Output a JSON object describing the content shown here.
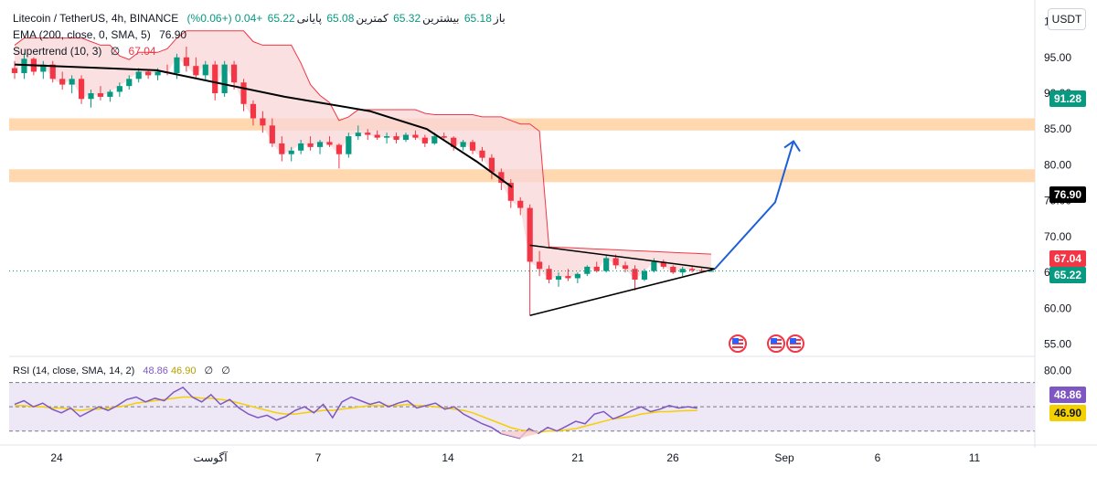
{
  "header": {
    "symbol": "Litecoin / TetherUS, 4h, BINANCE",
    "ohlc": {
      "open_label": "باز",
      "open": "65.18",
      "high_label": "بیشترین",
      "high": "65.32",
      "low_label": "کمترین",
      "low": "65.08",
      "close_label": "پایانی",
      "close": "65.22",
      "change": "+0.04 (+0.06%)"
    },
    "ema_label": "EMA (200, close, 0, SMA, 5)",
    "ema_value": "76.90",
    "supertrend_label": "Supertrend (10, 3)",
    "supertrend_symbol": "∅",
    "supertrend_value": "67.04",
    "rsi_label": "RSI (14, close, SMA, 14, 2)",
    "rsi_value": "48.86",
    "rsi_ma_value": "46.90",
    "rsi_empty_a": "∅",
    "rsi_empty_b": "∅",
    "currency": "USDT"
  },
  "price_badges": {
    "level_91": "91.28",
    "ema": "76.90",
    "supertrend": "67.04",
    "last": "65.22",
    "rsi": "48.86",
    "rsi_ma": "46.90"
  },
  "colors": {
    "up": "#089981",
    "down": "#f23645",
    "ema": "#000000",
    "supertrend_fill": "#f8d6d6",
    "zone": "#ffd8b0",
    "arrow": "#1e5fd8",
    "rsi_line": "#7e57c2",
    "rsi_ma": "#f5d000",
    "rsi_band": "#ede7f6"
  },
  "chart_data": {
    "type": "candlestick",
    "title": "Litecoin / TetherUS, 4h, BINANCE",
    "price_axis": {
      "ticks": [
        55,
        60,
        65,
        70,
        75,
        80,
        85,
        90,
        95,
        100
      ],
      "tick_labels": [
        "55.00",
        "60.00",
        "65.00",
        "70.00",
        "75.00",
        "80.00",
        "85.00",
        "90.00",
        "95.00",
        "100.00"
      ],
      "ylim": [
        53.3,
        103
      ]
    },
    "time_axis": {
      "tick_labels": [
        "24",
        "آگوست",
        "7",
        "14",
        "21",
        "26",
        "Sep",
        "6",
        "11"
      ]
    },
    "candles_ohlc": [
      [
        93.5,
        94.5,
        92.0,
        92.8
      ],
      [
        92.8,
        95.5,
        92.0,
        94.8
      ],
      [
        94.8,
        95.0,
        92.5,
        93.0
      ],
      [
        93.0,
        94.5,
        92.0,
        94.0
      ],
      [
        94.0,
        94.5,
        91.5,
        92.0
      ],
      [
        92.0,
        93.0,
        90.5,
        91.2
      ],
      [
        91.2,
        92.5,
        90.0,
        92.0
      ],
      [
        92.0,
        92.5,
        88.5,
        89.2
      ],
      [
        89.2,
        90.5,
        88.0,
        90.0
      ],
      [
        90.0,
        91.0,
        89.0,
        89.5
      ],
      [
        89.5,
        90.5,
        88.8,
        90.2
      ],
      [
        90.2,
        91.5,
        89.5,
        91.0
      ],
      [
        91.0,
        92.5,
        90.5,
        92.0
      ],
      [
        92.0,
        93.5,
        91.5,
        93.0
      ],
      [
        93.0,
        93.2,
        92.0,
        92.5
      ],
      [
        92.5,
        93.5,
        91.8,
        93.0
      ],
      [
        93.0,
        94.0,
        92.5,
        92.8
      ],
      [
        92.8,
        95.5,
        92.0,
        95.0
      ],
      [
        95.0,
        96.5,
        93.0,
        93.8
      ],
      [
        93.8,
        95.0,
        92.0,
        92.5
      ],
      [
        92.5,
        94.5,
        91.8,
        94.0
      ],
      [
        94.0,
        94.5,
        89.0,
        90.0
      ],
      [
        90.0,
        94.5,
        89.5,
        94.0
      ],
      [
        94.0,
        94.5,
        90.5,
        91.5
      ],
      [
        91.5,
        92.0,
        87.5,
        88.5
      ],
      [
        88.5,
        89.0,
        85.5,
        86.5
      ],
      [
        86.5,
        87.5,
        84.5,
        85.5
      ],
      [
        85.5,
        86.5,
        82.5,
        83.0
      ],
      [
        83.0,
        84.0,
        80.5,
        81.5
      ],
      [
        81.5,
        82.5,
        80.5,
        82.0
      ],
      [
        82.0,
        83.5,
        81.5,
        83.0
      ],
      [
        83.0,
        84.0,
        82.0,
        82.5
      ],
      [
        82.5,
        83.5,
        81.5,
        83.2
      ],
      [
        83.2,
        84.0,
        82.5,
        82.8
      ],
      [
        82.8,
        83.0,
        79.5,
        81.5
      ],
      [
        81.5,
        84.5,
        81.0,
        84.0
      ],
      [
        84.0,
        85.5,
        83.5,
        84.5
      ],
      [
        84.5,
        85.0,
        83.5,
        84.2
      ],
      [
        84.2,
        84.8,
        83.5,
        83.8
      ],
      [
        83.8,
        84.5,
        83.0,
        84.0
      ],
      [
        84.0,
        84.5,
        83.0,
        83.5
      ],
      [
        83.5,
        84.5,
        83.2,
        84.2
      ],
      [
        84.2,
        84.8,
        83.5,
        83.8
      ],
      [
        83.8,
        84.2,
        82.5,
        83.0
      ],
      [
        83.0,
        84.5,
        82.8,
        84.0
      ],
      [
        84.0,
        84.5,
        83.5,
        83.8
      ],
      [
        83.8,
        84.0,
        82.0,
        82.5
      ],
      [
        82.5,
        83.5,
        82.0,
        83.2
      ],
      [
        83.2,
        83.5,
        81.5,
        82.0
      ],
      [
        82.0,
        82.5,
        80.5,
        81.0
      ],
      [
        81.0,
        81.5,
        78.0,
        79.0
      ],
      [
        79.0,
        79.5,
        76.5,
        77.5
      ],
      [
        77.5,
        78.0,
        74.0,
        75.0
      ],
      [
        75.0,
        75.5,
        73.0,
        74.0
      ],
      [
        74.0,
        74.5,
        59.0,
        66.5
      ],
      [
        66.5,
        68.0,
        64.5,
        65.5
      ],
      [
        65.5,
        66.0,
        63.5,
        64.0
      ],
      [
        64.0,
        65.0,
        63.0,
        64.5
      ],
      [
        64.5,
        65.5,
        63.8,
        64.2
      ],
      [
        64.2,
        65.0,
        63.5,
        64.8
      ],
      [
        64.8,
        66.0,
        64.5,
        65.8
      ],
      [
        65.8,
        66.5,
        65.0,
        65.2
      ],
      [
        65.2,
        67.5,
        65.0,
        67.0
      ],
      [
        67.0,
        67.5,
        65.5,
        66.0
      ],
      [
        66.0,
        66.5,
        65.0,
        65.5
      ],
      [
        65.5,
        66.0,
        62.5,
        64.0
      ],
      [
        64.0,
        65.5,
        63.8,
        65.2
      ],
      [
        65.2,
        67.0,
        65.0,
        66.5
      ],
      [
        66.5,
        66.8,
        65.5,
        65.8
      ],
      [
        65.8,
        66.0,
        64.8,
        65.0
      ],
      [
        65.0,
        65.8,
        64.5,
        65.5
      ],
      [
        65.5,
        66.0,
        65.0,
        65.3
      ],
      [
        65.3,
        65.6,
        65.0,
        65.18
      ],
      [
        65.18,
        65.32,
        65.08,
        65.22
      ]
    ],
    "ema200": {
      "name": "EMA (200, close, 0, SMA, 5)",
      "x_frac": [
        0.0,
        0.2,
        0.38,
        0.5,
        0.58,
        0.65,
        0.7
      ],
      "values": [
        94.0,
        93.2,
        89.5,
        87.5,
        85.0,
        80.5,
        76.9
      ]
    },
    "supertrend": {
      "name": "Supertrend (10, 3)",
      "value": 67.04
    },
    "resistance_zones": [
      [
        84.8,
        86.5
      ],
      [
        77.6,
        79.4
      ]
    ],
    "triangle": {
      "top": [
        68.8,
        65.5
      ],
      "bottom": [
        59.0,
        65.5
      ]
    },
    "projection_arrow": [
      65.5,
      74.8,
      83.3
    ],
    "rsi": {
      "ylim": [
        20,
        90
      ],
      "levels": [
        30,
        50,
        70
      ],
      "tick_labels": [
        "80.00"
      ],
      "values": [
        52,
        55,
        50,
        53,
        48,
        45,
        49,
        42,
        46,
        50,
        47,
        51,
        56,
        58,
        54,
        57,
        55,
        62,
        66,
        58,
        54,
        60,
        52,
        56,
        49,
        44,
        41,
        43,
        39,
        42,
        47,
        50,
        45,
        52,
        41,
        54,
        58,
        55,
        52,
        54,
        50,
        53,
        55,
        49,
        51,
        53,
        48,
        50,
        44,
        40,
        36,
        33,
        28,
        26,
        24,
        32,
        28,
        33,
        30,
        34,
        38,
        36,
        44,
        46,
        40,
        43,
        47,
        50,
        46,
        48,
        51,
        49,
        50,
        48.86
      ],
      "ma_values": [
        51,
        51,
        50,
        50,
        49,
        49,
        48,
        47,
        48,
        48,
        49,
        50,
        51,
        53,
        54,
        55,
        56,
        57,
        58,
        58,
        57,
        57,
        56,
        55,
        53,
        51,
        49,
        47,
        45,
        44,
        44,
        45,
        46,
        47,
        47,
        48,
        49,
        50,
        51,
        51,
        51,
        51,
        52,
        51,
        51,
        50,
        49,
        48,
        47,
        45,
        42,
        39,
        36,
        33,
        31,
        30,
        29,
        30,
        30,
        31,
        32,
        34,
        36,
        38,
        40,
        41,
        42,
        44,
        45,
        46,
        46,
        46.5,
        46.8,
        46.9
      ]
    }
  }
}
